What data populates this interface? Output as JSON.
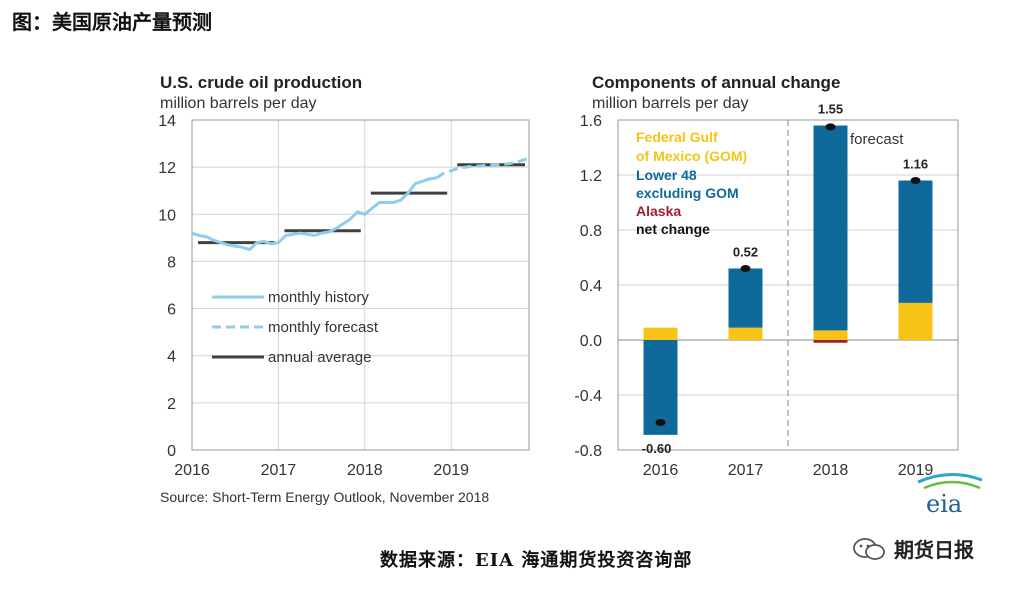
{
  "heading": "图：美国原油产量预测",
  "source_note_cn": "数据来源：EIA  海通期货投资咨询部",
  "watermark": "期货日报",
  "eia_logo": "eia",
  "chart_data": [
    {
      "type": "line",
      "title": "U.S. crude oil production",
      "subtitle": "million barrels per day",
      "x_ticks": [
        "2016",
        "2017",
        "2018",
        "2019"
      ],
      "xlim": [
        2016,
        2019.9
      ],
      "y_ticks": [
        "0",
        "2",
        "4",
        "6",
        "8",
        "10",
        "12",
        "14"
      ],
      "ylim": [
        0,
        14
      ],
      "legend": [
        "monthly history",
        "monthly forecast",
        "annual average"
      ],
      "source": "Source: Short-Term Energy Outlook, November 2018",
      "series": [
        {
          "name": "monthly history",
          "x": [
            2016.0,
            2016.083,
            2016.167,
            2016.25,
            2016.333,
            2016.417,
            2016.5,
            2016.583,
            2016.667,
            2016.75,
            2016.833,
            2016.917,
            2017.0,
            2017.083,
            2017.167,
            2017.25,
            2017.333,
            2017.417,
            2017.5,
            2017.583,
            2017.667,
            2017.75,
            2017.833,
            2017.917,
            2018.0,
            2018.083,
            2018.167,
            2018.25,
            2018.333,
            2018.417,
            2018.5,
            2018.583,
            2018.667,
            2018.75,
            2018.833
          ],
          "y": [
            9.2,
            9.1,
            9.05,
            8.9,
            8.8,
            8.7,
            8.65,
            8.6,
            8.5,
            8.8,
            8.85,
            8.75,
            8.8,
            9.1,
            9.15,
            9.2,
            9.15,
            9.1,
            9.2,
            9.25,
            9.4,
            9.6,
            9.8,
            10.1,
            10.0,
            10.25,
            10.5,
            10.5,
            10.5,
            10.6,
            10.9,
            11.3,
            11.4,
            11.5,
            11.55
          ]
        },
        {
          "name": "monthly forecast",
          "x": [
            2018.833,
            2018.917,
            2019.0,
            2019.083,
            2019.167,
            2019.25,
            2019.333,
            2019.417,
            2019.5,
            2019.583,
            2019.667,
            2019.75,
            2019.833,
            2019.917
          ],
          "y": [
            11.55,
            11.75,
            11.85,
            11.95,
            12.0,
            12.05,
            12.05,
            12.1,
            12.1,
            12.1,
            12.15,
            12.2,
            12.3,
            12.4
          ]
        },
        {
          "name": "annual average",
          "segments": [
            {
              "year": 2016,
              "value": 8.8
            },
            {
              "year": 2017,
              "value": 9.3
            },
            {
              "year": 2018,
              "value": 10.9
            },
            {
              "year": 2019,
              "value": 12.1
            }
          ]
        }
      ]
    },
    {
      "type": "bar",
      "stacked": true,
      "title": "Components of annual change",
      "subtitle": "million barrels per day",
      "categories": [
        "2016",
        "2017",
        "2018",
        "2019"
      ],
      "y_ticks": [
        "1.6",
        "1.2",
        "0.8",
        "0.4",
        "0.0",
        "-0.4",
        "-0.8"
      ],
      "ylim": [
        -0.8,
        1.6
      ],
      "legend": [
        "Federal Gulf",
        "of Mexico (GOM)",
        "Lower 48",
        "excluding GOM",
        "Alaska",
        "net change"
      ],
      "forecast_label": "forecast",
      "forecast_divider_after": "2017",
      "series": [
        {
          "name": "Federal Gulf of Mexico (GOM)",
          "color": "#f6c316",
          "values": [
            0.09,
            0.09,
            0.07,
            0.27
          ]
        },
        {
          "name": "Lower 48 excluding GOM",
          "color": "#10699b",
          "values": [
            -0.69,
            0.43,
            1.49,
            0.89
          ]
        },
        {
          "name": "Alaska",
          "color": "#a01f36",
          "values": [
            0.0,
            0.0,
            -0.02,
            0.0
          ]
        }
      ],
      "net_change": [
        -0.6,
        0.52,
        1.55,
        1.16
      ],
      "net_change_labels": [
        "-0.60",
        "0.52",
        "1.55",
        "1.16"
      ]
    }
  ]
}
